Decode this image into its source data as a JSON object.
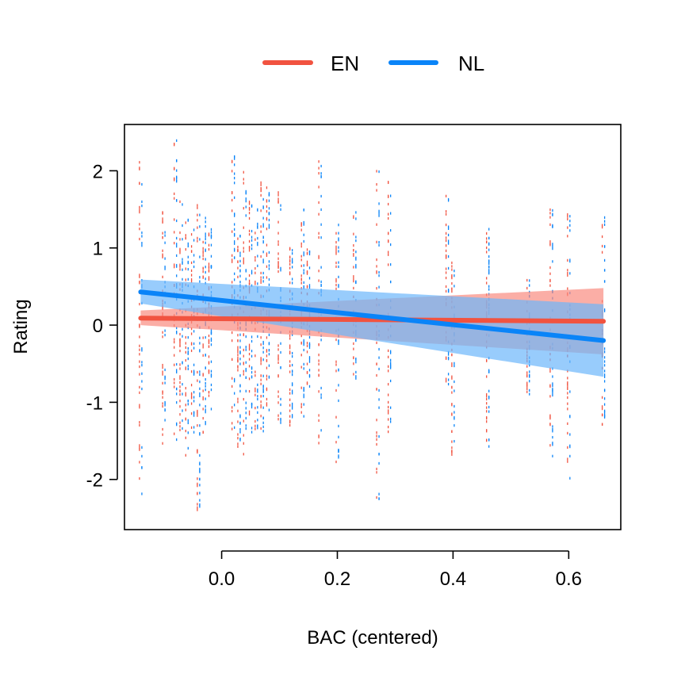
{
  "chart_data": {
    "type": "line",
    "title": "",
    "xlabel": "BAC (centered)",
    "ylabel": "Rating",
    "xlim": [
      -0.168,
      0.69
    ],
    "ylim": [
      -2.65,
      2.6
    ],
    "x_ticks": [
      0.0,
      0.2,
      0.4,
      0.6
    ],
    "x_tick_labels": [
      "0.0",
      "0.2",
      "0.4",
      "0.6"
    ],
    "y_ticks": [
      -2,
      -1,
      0,
      1,
      2
    ],
    "y_tick_labels": [
      "-2",
      "-1",
      "0",
      "1",
      "2"
    ],
    "grid": false,
    "legend_position": "top-center",
    "legend": [
      {
        "name": "EN",
        "color": "#f15340"
      },
      {
        "name": "NL",
        "color": "#0a84f8"
      }
    ],
    "series": [
      {
        "name": "EN",
        "color": "#f15340",
        "band_color": "#f98c80",
        "x": [
          -0.14,
          0.66
        ],
        "fit": [
          0.09,
          0.05
        ],
        "lower": [
          0.0,
          -0.38
        ],
        "upper": [
          0.19,
          0.48
        ]
      },
      {
        "name": "NL",
        "color": "#0a84f8",
        "band_color": "#6cb6fb",
        "x": [
          -0.14,
          0.66
        ],
        "fit": [
          0.43,
          -0.2
        ],
        "lower": [
          0.28,
          -0.67
        ],
        "upper": [
          0.59,
          0.27
        ]
      }
    ],
    "rug_columns": {
      "x": [
        -0.14,
        -0.1,
        -0.08,
        -0.07,
        -0.06,
        -0.05,
        -0.04,
        -0.03,
        -0.02,
        0.02,
        0.03,
        0.04,
        0.05,
        0.06,
        0.07,
        0.08,
        0.1,
        0.12,
        0.14,
        0.15,
        0.17,
        0.2,
        0.23,
        0.27,
        0.29,
        0.39,
        0.4,
        0.46,
        0.53,
        0.57,
        0.6,
        0.66
      ],
      "y_min": [
        -2.2,
        -1.7,
        -1.5,
        -1.4,
        -1.7,
        -1.4,
        -2.4,
        -1.4,
        -1.1,
        -1.5,
        -1.6,
        -1.7,
        -1.4,
        -1.4,
        -1.4,
        -1.2,
        -1.3,
        -1.3,
        -1.2,
        -0.8,
        -1.6,
        -1.8,
        -0.7,
        -2.4,
        -1.4,
        -0.8,
        -1.7,
        -1.6,
        -0.9,
        -1.7,
        -2.0,
        -1.3
      ],
      "y_max": [
        2.2,
        1.5,
        2.4,
        1.7,
        1.4,
        1.3,
        1.6,
        1.4,
        1.3,
        2.2,
        1.2,
        2.0,
        1.6,
        1.5,
        1.9,
        1.8,
        1.9,
        1.0,
        1.5,
        1.0,
        2.2,
        1.3,
        1.5,
        2.0,
        1.9,
        1.7,
        0.9,
        1.3,
        0.6,
        1.5,
        1.5,
        1.4
      ]
    }
  }
}
